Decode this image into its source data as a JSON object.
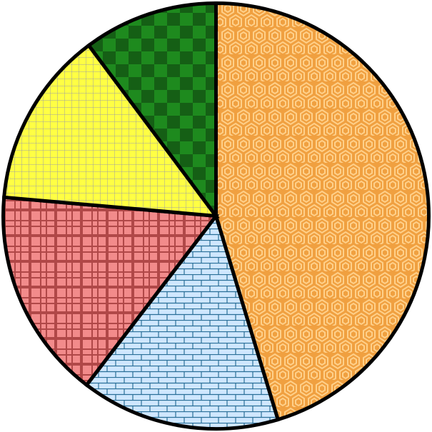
{
  "chart_data": {
    "type": "pie",
    "title": "",
    "start_angle_deg": 0,
    "direction": "clockwise",
    "slices": [
      {
        "value": 45.3,
        "color": "#f0a040",
        "pattern": "hexagons",
        "pattern_color": "#ffd08a"
      },
      {
        "value": 15.1,
        "color": "#cfe7ff",
        "pattern": "bricks",
        "pattern_color": "#2a6f97"
      },
      {
        "value": 16.0,
        "color": "#f28b8b",
        "pattern": "plaid",
        "pattern_color": "#7a1010"
      },
      {
        "value": 13.4,
        "color": "#ffff44",
        "pattern": "grid",
        "pattern_color": "#a0a0a0"
      },
      {
        "value": 10.2,
        "color": "#1e8a1e",
        "pattern": "checker",
        "pattern_color": "#155f15"
      }
    ],
    "legend": "none",
    "edge_color": "#000000"
  }
}
